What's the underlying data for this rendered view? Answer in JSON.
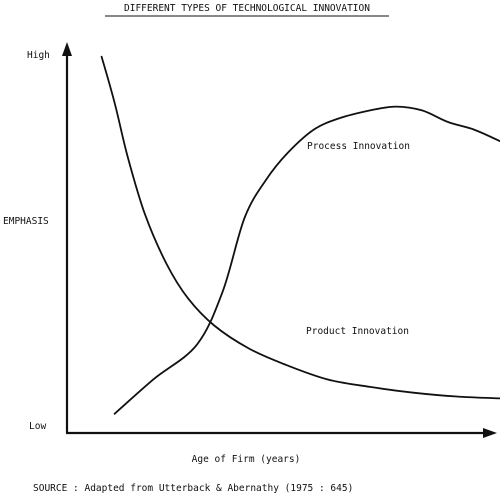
{
  "chart_data": {
    "type": "line",
    "title": "DIFFERENT TYPES OF TECHNOLOGICAL INNOVATION",
    "xlabel": "Age of Firm (years)",
    "ylabel": "EMPHASIS",
    "y_tick_labels": {
      "top": "High",
      "bottom": "Low"
    },
    "xlim": [
      0,
      100
    ],
    "ylim": [
      0,
      100
    ],
    "grid": false,
    "legend": "none",
    "series": [
      {
        "name": "Process Innovation",
        "x": [
          11,
          20,
          30,
          36,
          41,
          46,
          51,
          57,
          63,
          70,
          76,
          82,
          88,
          94,
          100
        ],
        "y": [
          5,
          14,
          23,
          37,
          56,
          66,
          73,
          79,
          82,
          84,
          85,
          84,
          81,
          79,
          76
        ]
      },
      {
        "name": "Product Innovation",
        "x": [
          8,
          11,
          14,
          18,
          23,
          28,
          34,
          42,
          50,
          60,
          70,
          80,
          90,
          100
        ],
        "y": [
          98,
          86,
          72,
          57,
          44,
          35,
          28,
          22,
          18,
          14,
          12,
          10.5,
          9.5,
          9
        ]
      }
    ],
    "annotations": []
  },
  "source_note": "SOURCE : Adapted from Utterback & Abernathy (1975 : 645)"
}
